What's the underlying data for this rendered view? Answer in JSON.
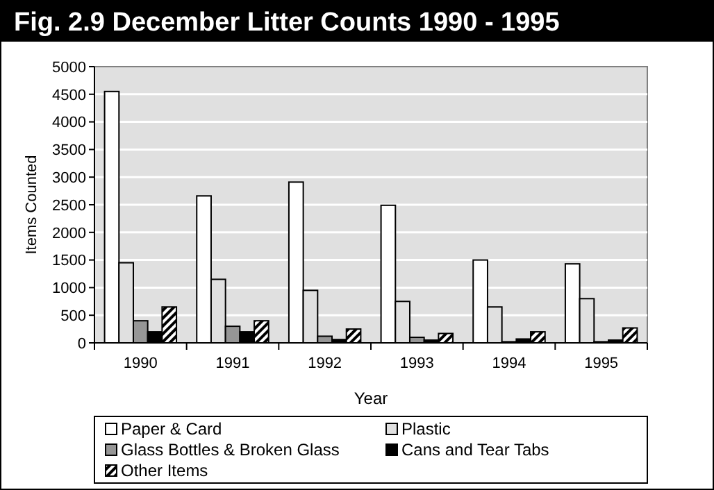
{
  "chart_data": {
    "type": "bar",
    "title": "Fig. 2.9  December Litter Counts 1990 - 1995",
    "xlabel": "Year",
    "ylabel": "Items Counted",
    "categories": [
      "1990",
      "1991",
      "1992",
      "1993",
      "1994",
      "1995"
    ],
    "series": [
      {
        "name": "Paper & Card",
        "color": "#ffffff",
        "values": [
          4550,
          2660,
          2910,
          2490,
          1500,
          1430
        ]
      },
      {
        "name": "Plastic",
        "color": "#e0e0e0",
        "values": [
          1450,
          1150,
          950,
          750,
          650,
          800
        ]
      },
      {
        "name": "Glass Bottles & Broken Glass",
        "color": "#969696",
        "values": [
          400,
          300,
          120,
          100,
          20,
          20
        ]
      },
      {
        "name": "Cans and Tear Tabs",
        "color": "#000000",
        "values": [
          200,
          200,
          60,
          50,
          70,
          50
        ]
      },
      {
        "name": "Other Items",
        "color": "#000000",
        "values": [
          650,
          400,
          250,
          170,
          200,
          270
        ]
      }
    ],
    "ylim": [
      0,
      5000
    ],
    "yticks": [
      0,
      500,
      1000,
      1500,
      2000,
      2500,
      3000,
      3500,
      4000,
      4500,
      5000
    ],
    "grid": "y",
    "legend": "bottom"
  }
}
